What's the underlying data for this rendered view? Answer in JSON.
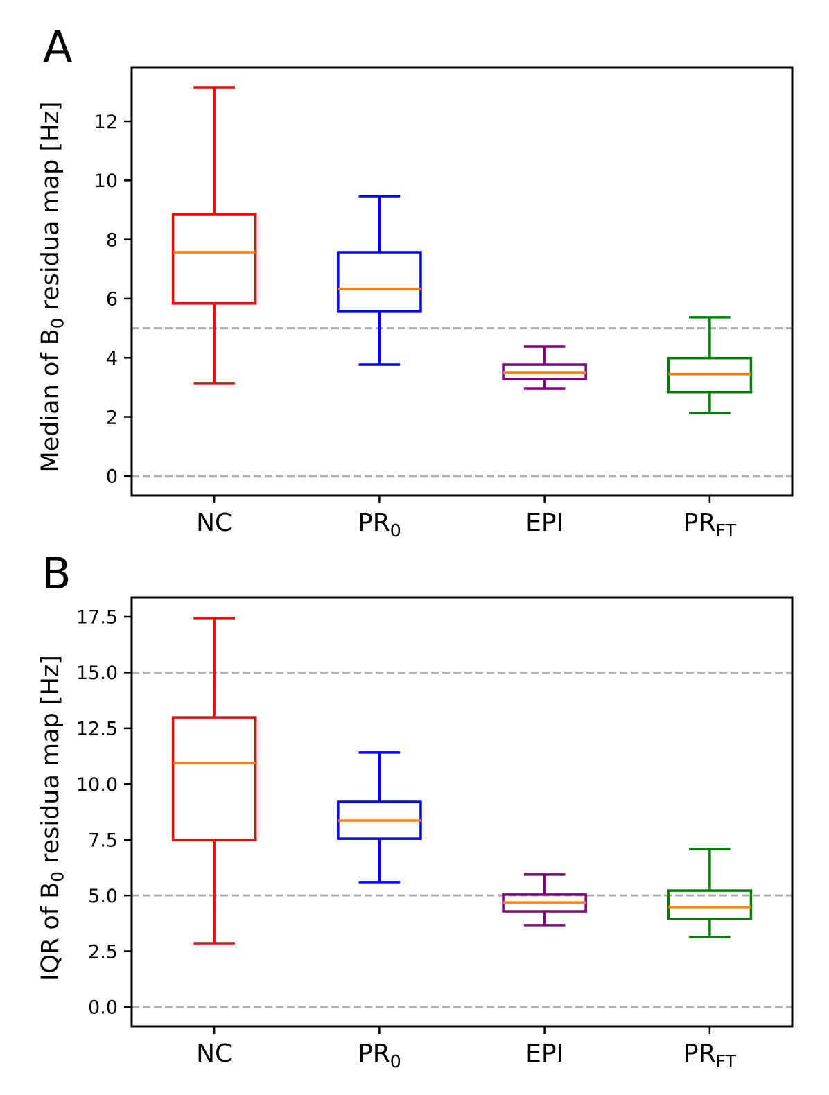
{
  "chart_data": [
    {
      "type": "box",
      "panel_label": "A",
      "ylabel": {
        "prefix": "Median of B",
        "sub": "0",
        "suffix": " residua map [Hz]"
      },
      "categories": [
        {
          "main": "NC"
        },
        {
          "main": "PR",
          "sub": "0"
        },
        {
          "main": "EPI"
        },
        {
          "main": "PR",
          "sub": "FT"
        }
      ],
      "x_positions": [
        1,
        2,
        3,
        4
      ],
      "xlim": [
        0.5,
        4.5
      ],
      "ylim": [
        -0.66,
        13.83
      ],
      "yticks": [
        0,
        2,
        4,
        6,
        8,
        10,
        12
      ],
      "ytick_labels": [
        "0",
        "2",
        "4",
        "6",
        "8",
        "10",
        "12"
      ],
      "grid": false,
      "reference_lines": [
        5,
        0
      ],
      "reference_line_color": "#b0b0b0",
      "median_color": "#ff7f0e",
      "boxes": [
        {
          "whisker_low": 3.14,
          "q1": 5.84,
          "median": 7.57,
          "q3": 8.86,
          "whisker_high": 13.15,
          "color": "#ff0000"
        },
        {
          "whisker_low": 3.77,
          "q1": 5.58,
          "median": 6.33,
          "q3": 7.57,
          "whisker_high": 9.47,
          "color": "#0000ff"
        },
        {
          "whisker_low": 2.95,
          "q1": 3.28,
          "median": 3.49,
          "q3": 3.77,
          "whisker_high": 4.38,
          "color": "#800080"
        },
        {
          "whisker_low": 2.13,
          "q1": 2.84,
          "median": 3.45,
          "q3": 3.99,
          "whisker_high": 5.37,
          "color": "#008000"
        }
      ]
    },
    {
      "type": "box",
      "panel_label": "B",
      "ylabel": {
        "prefix": "IQR of B",
        "sub": "0",
        "suffix": " residua map [Hz]"
      },
      "categories": [
        {
          "main": "NC"
        },
        {
          "main": "PR",
          "sub": "0"
        },
        {
          "main": "EPI"
        },
        {
          "main": "PR",
          "sub": "FT"
        }
      ],
      "x_positions": [
        1,
        2,
        3,
        4
      ],
      "xlim": [
        0.5,
        4.5
      ],
      "ylim": [
        -0.87,
        18.37
      ],
      "yticks": [
        0,
        2.5,
        5,
        7.5,
        10,
        12.5,
        15,
        17.5
      ],
      "ytick_labels": [
        "0.0",
        "2.5",
        "5.0",
        "7.5",
        "10.0",
        "12.5",
        "15.0",
        "17.5"
      ],
      "grid": false,
      "reference_lines": [
        15,
        5,
        0
      ],
      "reference_line_color": "#b0b0b0",
      "median_color": "#ff7f0e",
      "boxes": [
        {
          "whisker_low": 2.86,
          "q1": 7.49,
          "median": 10.94,
          "q3": 12.99,
          "whisker_high": 17.44,
          "color": "#ff0000"
        },
        {
          "whisker_low": 5.6,
          "q1": 7.55,
          "median": 8.36,
          "q3": 9.2,
          "whisker_high": 11.41,
          "color": "#0000ff"
        },
        {
          "whisker_low": 3.67,
          "q1": 4.29,
          "median": 4.69,
          "q3": 5.04,
          "whisker_high": 5.94,
          "color": "#800080"
        },
        {
          "whisker_low": 3.14,
          "q1": 3.95,
          "median": 4.48,
          "q3": 5.22,
          "whisker_high": 7.09,
          "color": "#008000"
        }
      ]
    }
  ]
}
